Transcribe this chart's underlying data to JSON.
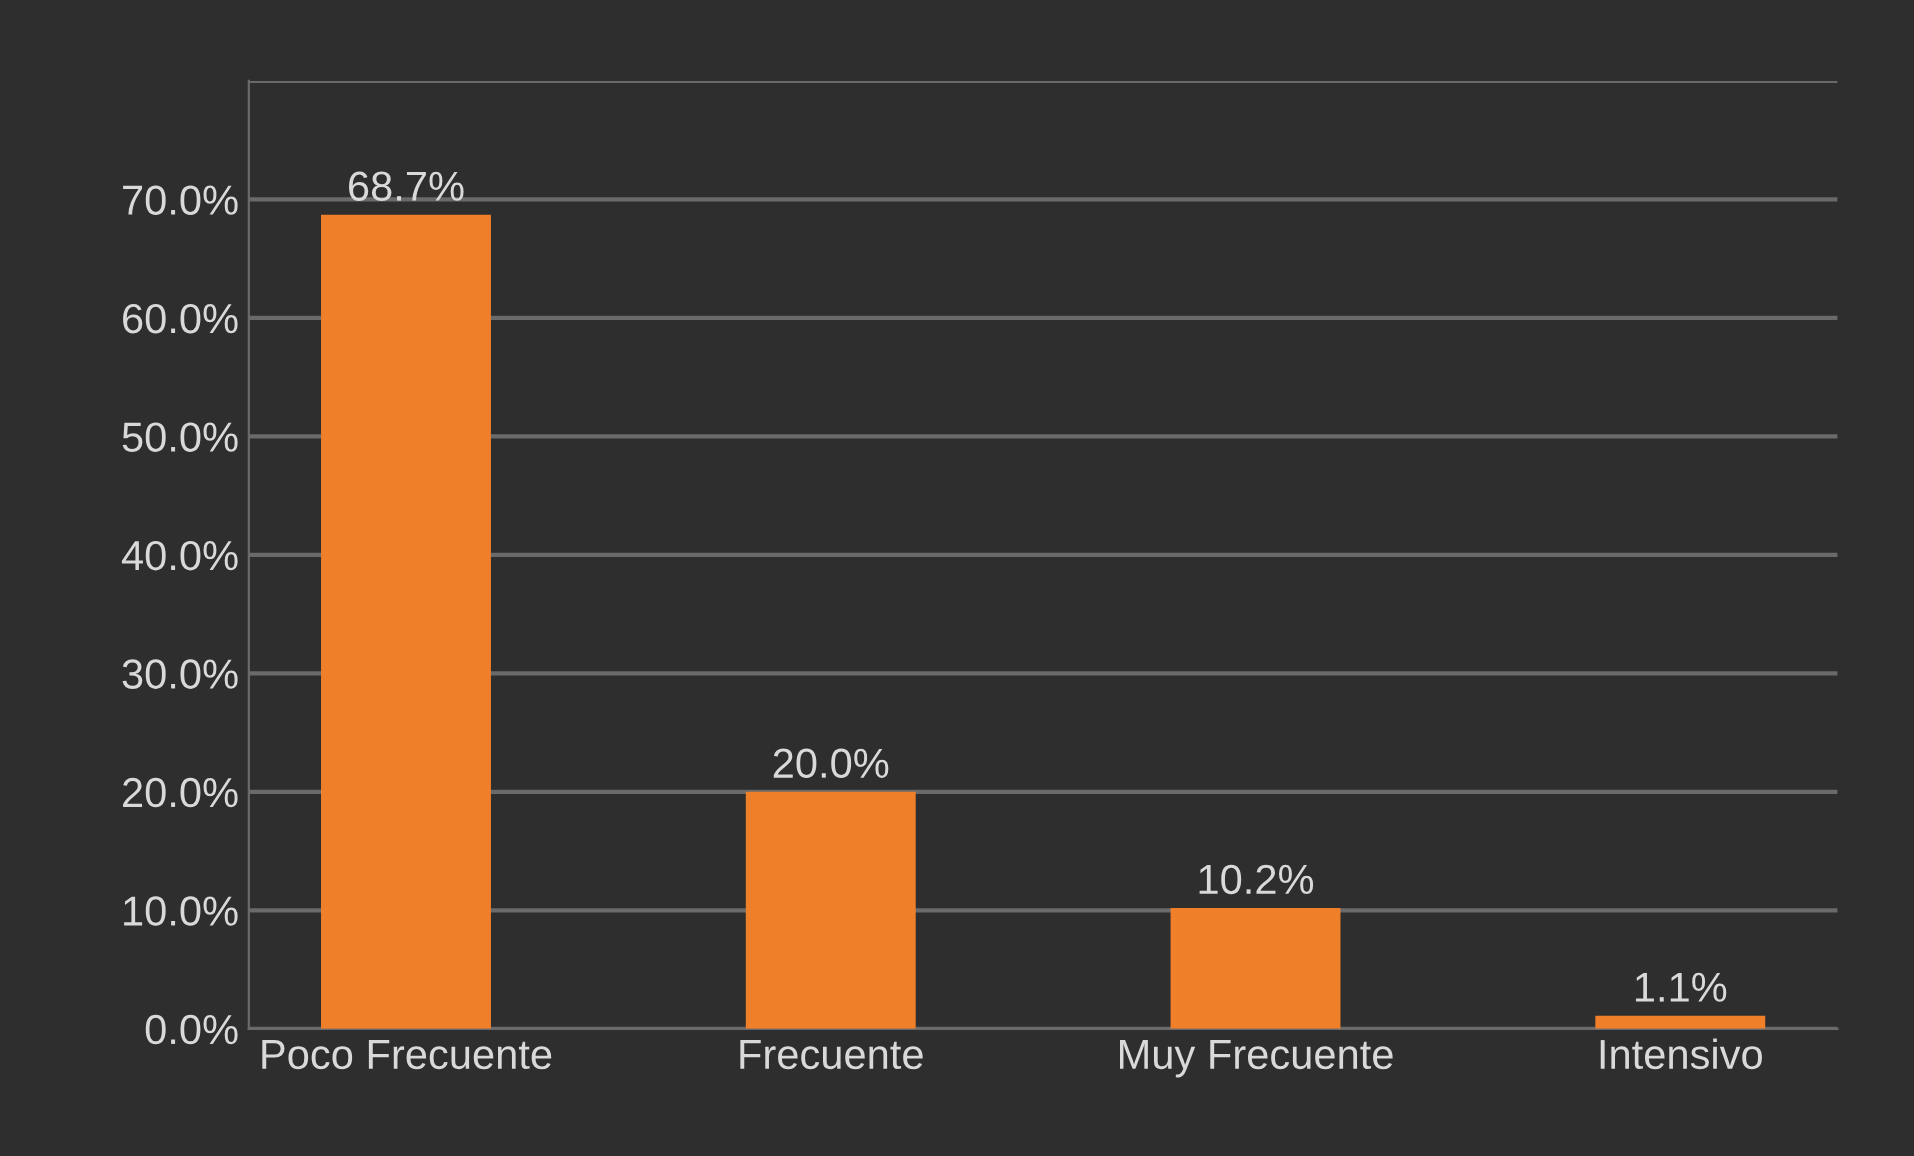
{
  "chart_data": {
    "type": "bar",
    "categories": [
      "Poco Frecuente",
      "Frecuente",
      "Muy Frecuente",
      "Intensivo"
    ],
    "values": [
      68.7,
      20.0,
      10.2,
      1.1
    ],
    "value_labels": [
      "68.7%",
      "20.0%",
      "10.2%",
      "1.1%"
    ],
    "color": "#f07f2a",
    "ylim": [
      0,
      80
    ],
    "yticks": [
      {
        "value": 0,
        "label": "0.0%"
      },
      {
        "value": 10,
        "label": "10.0%"
      },
      {
        "value": 20,
        "label": "20.0%"
      },
      {
        "value": 30,
        "label": "30.0%"
      },
      {
        "value": 40,
        "label": "40.0%"
      },
      {
        "value": 50,
        "label": "50.0%"
      },
      {
        "value": 60,
        "label": "60.0%"
      },
      {
        "value": 70,
        "label": "70.0%"
      },
      {
        "value": 80,
        "label": null
      }
    ],
    "grid": "y"
  }
}
